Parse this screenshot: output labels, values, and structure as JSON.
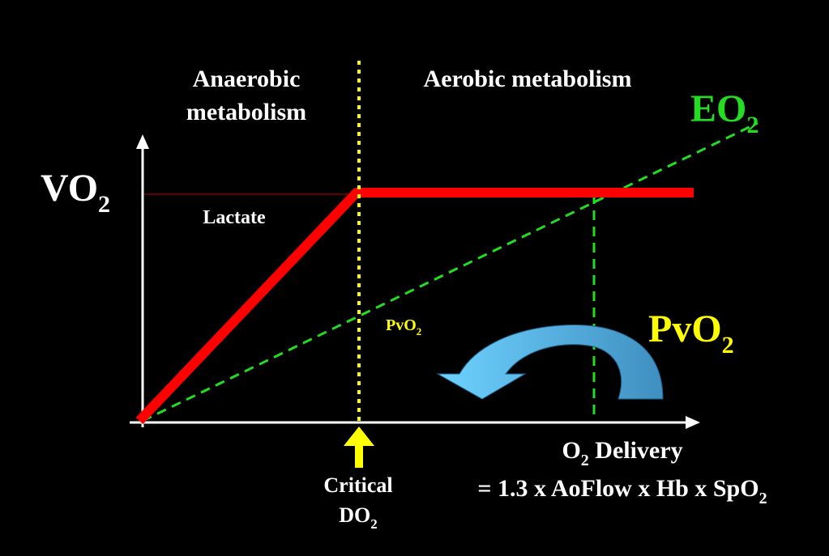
{
  "regions": {
    "anaerobic_line1": "Anaerobic",
    "anaerobic_line2": "metabolism",
    "aerobic": "Aerobic metabolism"
  },
  "y_axis": {
    "base": "VO",
    "sub": "2"
  },
  "eo2": {
    "base": "EO",
    "sub": "2",
    "color": "#22dd22"
  },
  "lactate_label": "Lactate",
  "pvo2_small": {
    "base": "PvO",
    "sub": "2",
    "color": "#ffff00"
  },
  "pvo2_large": {
    "base": "PvO",
    "sub": "2",
    "color": "#ffff00"
  },
  "critical": {
    "line1": "Critical",
    "line2_base": "DO",
    "line2_sub": "2"
  },
  "x_axis": {
    "line1_base": "O",
    "line1_sub": "2",
    "line1_rest": " Delivery",
    "line2_base": "= 1.3 x AoFlow x Hb x SpO",
    "line2_sub": "2"
  },
  "colors": {
    "background": "#000000",
    "vo2_curve": "#ff0000",
    "critical_line": "#ffff00",
    "arrow": "#5ab8ee",
    "text": "#ffffff"
  },
  "icons": {
    "curved_arrow": "curved-arrow-left-icon",
    "up_arrow": "up-arrow-icon"
  }
}
